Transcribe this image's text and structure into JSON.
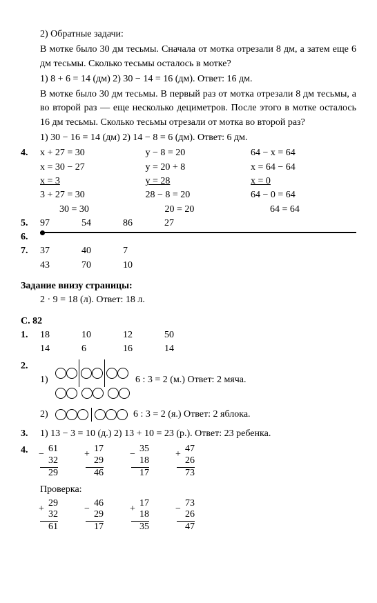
{
  "top": {
    "line1": "2) Обратные задачи:",
    "para1": "В мотке было 30 дм тесьмы. Сначала от мотка отрезали 8 дм, а затем еще 6 дм тесьмы. Сколько тесьмы осталось в мотке?",
    "line2": "1) 8 + 6 = 14 (дм) 2) 30 − 14 = 16 (дм). Ответ: 16 дм.",
    "para2": "В мотке было 30 дм тесьмы. В первый раз от мотка отрезали 8 дм тесьмы, а во второй раз — еще несколько дециметров. После этого в мотке осталось 16 дм тесьмы. Сколько тесьмы отрезали от мотка во второй раз?",
    "line3": "1) 30 − 16 = 14 (дм) 2) 14 − 8 = 6 (дм). Ответ: 6 дм."
  },
  "p4": {
    "c1": [
      "x + 27 = 30",
      "x = 30 − 27",
      "x = 3",
      "3 + 27 = 30",
      "30 = 30"
    ],
    "c2": [
      "y − 8 = 20",
      "y = 20 + 8",
      "y = 28",
      "28 − 8 = 20",
      "20 = 20"
    ],
    "c3": [
      "64 − x = 64",
      "x = 64 − 64",
      "x = 0",
      "64 − 0 = 64",
      "64 = 64"
    ]
  },
  "p5": [
    "97",
    "54",
    "86",
    "27"
  ],
  "p7a": [
    "37",
    "40",
    "7"
  ],
  "p7b": [
    "43",
    "70",
    "10"
  ],
  "bottomTask": {
    "title": "Задание внизу страницы:",
    "line": "2 · 9 = 18 (л). Ответ: 18 л."
  },
  "s82": {
    "title": "С. 82",
    "p1a": [
      "18",
      "10",
      "12",
      "50"
    ],
    "p1b": [
      "14",
      "6",
      "16",
      "14"
    ],
    "p2_1": "6 : 3 = 2 (м.) Ответ: 2 мяча.",
    "p2_2": "6 : 3 = 2 (я.) Ответ: 2 яблока.",
    "p3": "1) 13 − 3 = 10 (д.) 2) 13 + 10 = 23 (р.). Ответ: 23 ребенка.",
    "p4": {
      "row1": [
        {
          "a": "61",
          "b": "32",
          "r": "29",
          "op": "−"
        },
        {
          "a": "17",
          "b": "29",
          "r": "46",
          "op": "+"
        },
        {
          "a": "35",
          "b": "18",
          "r": "17",
          "op": "−"
        },
        {
          "a": "47",
          "b": "26",
          "r": "73",
          "op": "+"
        }
      ],
      "check": "Проверка:",
      "row2": [
        {
          "a": "29",
          "b": "32",
          "r": "61",
          "op": "+"
        },
        {
          "a": "46",
          "b": "29",
          "r": "17",
          "op": "−"
        },
        {
          "a": "17",
          "b": "18",
          "r": "35",
          "op": "+"
        },
        {
          "a": "73",
          "b": "26",
          "r": "47",
          "op": "−"
        }
      ]
    }
  },
  "labels": {
    "n1": "1.",
    "n2": "2.",
    "n3": "3.",
    "n4": "4.",
    "n5": "5.",
    "n6": "6.",
    "n7": "7.",
    "i1": "1)",
    "i2": "2)"
  }
}
